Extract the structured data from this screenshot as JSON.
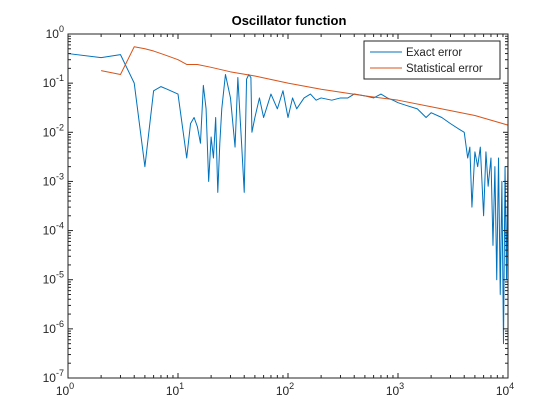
{
  "chart_data": {
    "type": "line",
    "title": "Oscillator function",
    "xlabel": "",
    "ylabel": "",
    "xscale": "log",
    "yscale": "log",
    "xlim": [
      1,
      10000
    ],
    "ylim": [
      1e-07,
      1
    ],
    "grid": false,
    "legend_position": "top-right",
    "x_ticks": [
      {
        "value": 1,
        "mantissa": "10",
        "exp": "0"
      },
      {
        "value": 10,
        "mantissa": "10",
        "exp": "1"
      },
      {
        "value": 100,
        "mantissa": "10",
        "exp": "2"
      },
      {
        "value": 1000,
        "mantissa": "10",
        "exp": "3"
      },
      {
        "value": 10000,
        "mantissa": "10",
        "exp": "4"
      }
    ],
    "y_ticks": [
      {
        "value": 1,
        "mantissa": "10",
        "exp": "0"
      },
      {
        "value": 0.1,
        "mantissa": "10",
        "exp": "-1"
      },
      {
        "value": 0.01,
        "mantissa": "10",
        "exp": "-2"
      },
      {
        "value": 0.001,
        "mantissa": "10",
        "exp": "-3"
      },
      {
        "value": 0.0001,
        "mantissa": "10",
        "exp": "-4"
      },
      {
        "value": 1e-05,
        "mantissa": "10",
        "exp": "-5"
      },
      {
        "value": 1e-06,
        "mantissa": "10",
        "exp": "-6"
      },
      {
        "value": 1e-07,
        "mantissa": "10",
        "exp": "-7"
      }
    ],
    "series": [
      {
        "name": "Exact error",
        "color": "#0072BD",
        "x": [
          1,
          2,
          3,
          4,
          5,
          6,
          7,
          8,
          10,
          12,
          13,
          14,
          15,
          16,
          17,
          18,
          19,
          20,
          21,
          22,
          23,
          24,
          25,
          27,
          30,
          33,
          35,
          38,
          40,
          42,
          44,
          46,
          47,
          50,
          55,
          60,
          70,
          80,
          90,
          100,
          110,
          120,
          140,
          160,
          180,
          200,
          250,
          300,
          350,
          400,
          500,
          600,
          700,
          800,
          900,
          1000,
          1200,
          1500,
          1800,
          2000,
          2500,
          3000,
          3500,
          4000,
          4300,
          4500,
          4700,
          5000,
          5300,
          5600,
          6000,
          6300,
          6600,
          7000,
          7300,
          7600,
          7900,
          8200,
          8500,
          8800,
          9100,
          9400,
          9700,
          10000
        ],
        "y": [
          0.4,
          0.33,
          0.38,
          0.1,
          0.002,
          0.07,
          0.085,
          0.075,
          0.06,
          0.003,
          0.015,
          0.02,
          0.013,
          0.006,
          0.09,
          0.03,
          0.001,
          0.008,
          0.003,
          0.02,
          0.0006,
          0.006,
          0.03,
          0.15,
          0.05,
          0.005,
          0.13,
          0.005,
          0.0006,
          0.12,
          0.15,
          0.13,
          0.01,
          0.02,
          0.05,
          0.02,
          0.06,
          0.03,
          0.07,
          0.02,
          0.05,
          0.03,
          0.05,
          0.06,
          0.045,
          0.05,
          0.045,
          0.05,
          0.05,
          0.06,
          0.055,
          0.05,
          0.06,
          0.05,
          0.045,
          0.04,
          0.035,
          0.03,
          0.02,
          0.025,
          0.02,
          0.015,
          0.012,
          0.01,
          0.003,
          0.005,
          0.0003,
          0.004,
          0.002,
          0.005,
          0.0002,
          0.004,
          0.0008,
          0.003,
          5e-05,
          0.002,
          1e-05,
          0.003,
          5e-06,
          0.001,
          5e-07,
          0.002,
          1e-05,
          0.004
        ]
      },
      {
        "name": "Statistical error",
        "color": "#D95319",
        "x": [
          2,
          3,
          4,
          5,
          6,
          7,
          8,
          10,
          12,
          15,
          20,
          30,
          50,
          100,
          200,
          500,
          1000,
          2000,
          5000,
          10000
        ],
        "y": [
          0.18,
          0.15,
          0.55,
          0.5,
          0.45,
          0.4,
          0.36,
          0.3,
          0.24,
          0.24,
          0.21,
          0.17,
          0.14,
          0.1,
          0.075,
          0.055,
          0.045,
          0.033,
          0.022,
          0.014
        ]
      }
    ]
  }
}
